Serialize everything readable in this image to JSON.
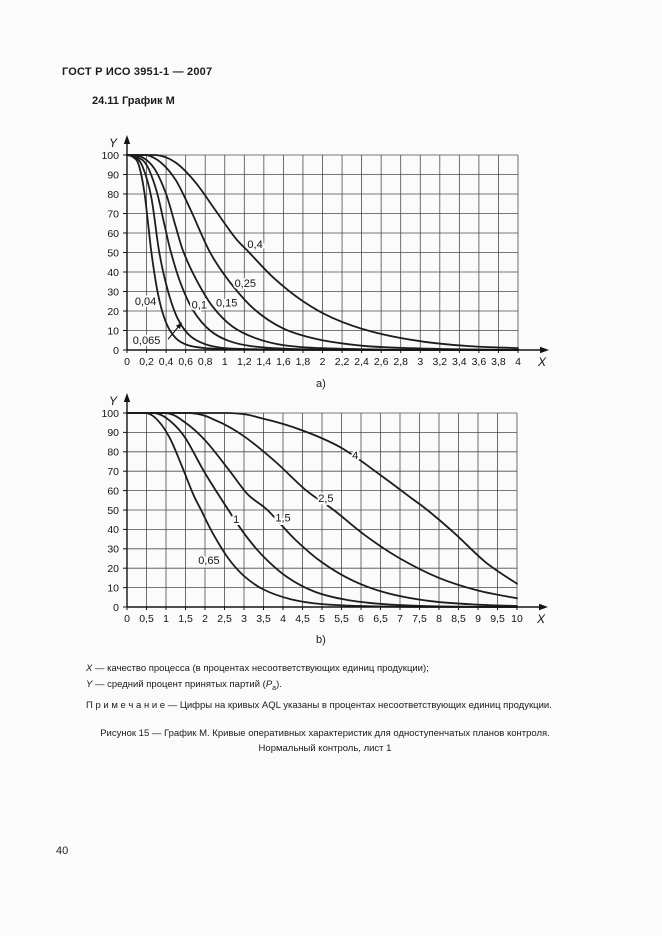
{
  "page": {
    "header": "ГОСТ Р ИСО 3951-1 — 2007",
    "section_title": "24.11 График М",
    "page_number": "40"
  },
  "legend": {
    "x_sym": "X",
    "x_rest": " — качество процесса (в процентах несоответствующих единиц продукции);",
    "y_sym": "Y",
    "y_rest": " — средний процент принятых партий (",
    "p_sym": "P",
    "p_sub": "a",
    "y_suffix": ").",
    "note": "П р и м е ч а н и е — Цифры на кривых AQL указаны в процентах  несоответствующих единиц продукции.",
    "caption_line1": "Рисунок 15 — График М. Кривые оперативных характеристик для одноступенчатых планов контроля.",
    "caption_line2": "Нормальный контроль, лист 1"
  },
  "chart_data": [
    {
      "id": "a",
      "type": "line",
      "sublabel": "a)",
      "xlabel": "X",
      "ylabel": "Y",
      "x_range": [
        0,
        4
      ],
      "x_grid_step": 0.2,
      "y_range": [
        0,
        100
      ],
      "y_grid_step": 10,
      "grid": true,
      "x_tick_labels": [
        "0",
        "0,2",
        "0,4",
        "0,6",
        "0,8",
        "1",
        "1,2",
        "1,4",
        "1,6",
        "1,8",
        "2",
        "2,2",
        "2,4",
        "2,6",
        "2,8",
        "3",
        "3,2",
        "3,4",
        "3,6",
        "3,8",
        "4"
      ],
      "y_tick_labels": [
        "0",
        "10",
        "20",
        "30",
        "40",
        "50",
        "60",
        "70",
        "80",
        "90",
        "100"
      ],
      "series": [
        {
          "name": "0,04",
          "label_pos": [
            0.19,
            25
          ],
          "points": [
            [
              0,
              100
            ],
            [
              0.06,
              99
            ],
            [
              0.12,
              95
            ],
            [
              0.18,
              80
            ],
            [
              0.25,
              50
            ],
            [
              0.32,
              28
            ],
            [
              0.4,
              14
            ],
            [
              0.5,
              6
            ],
            [
              0.62,
              2.5
            ],
            [
              0.8,
              1
            ],
            [
              1.1,
              0.3
            ],
            [
              1.7,
              0.1
            ],
            [
              4,
              0
            ]
          ]
        },
        {
          "name": "0,065",
          "label_pos": [
            0.2,
            5
          ],
          "points": [
            [
              0,
              100
            ],
            [
              0.08,
              99
            ],
            [
              0.16,
              94
            ],
            [
              0.25,
              78
            ],
            [
              0.33,
              50
            ],
            [
              0.42,
              30
            ],
            [
              0.52,
              16
            ],
            [
              0.64,
              7.5
            ],
            [
              0.8,
              3
            ],
            [
              1.0,
              1
            ],
            [
              1.4,
              0.3
            ],
            [
              2.0,
              0.1
            ],
            [
              4,
              0
            ]
          ]
        },
        {
          "name": "0,1",
          "label_pos": [
            0.74,
            23
          ],
          "points": [
            [
              0,
              100
            ],
            [
              0.1,
              99
            ],
            [
              0.2,
              95
            ],
            [
              0.3,
              82
            ],
            [
              0.38,
              65
            ],
            [
              0.45,
              50
            ],
            [
              0.55,
              34
            ],
            [
              0.68,
              20
            ],
            [
              0.85,
              10
            ],
            [
              1.05,
              4.5
            ],
            [
              1.3,
              1.8
            ],
            [
              1.7,
              0.5
            ],
            [
              2.3,
              0.1
            ],
            [
              4,
              0
            ]
          ]
        },
        {
          "name": "0,15",
          "label_pos": [
            1.02,
            24
          ],
          "points": [
            [
              0,
              100
            ],
            [
              0.15,
              99
            ],
            [
              0.28,
              93
            ],
            [
              0.4,
              80
            ],
            [
              0.5,
              63
            ],
            [
              0.58,
              50
            ],
            [
              0.72,
              35
            ],
            [
              0.88,
              22
            ],
            [
              1.08,
              12
            ],
            [
              1.32,
              6
            ],
            [
              1.6,
              2.5
            ],
            [
              2.0,
              0.9
            ],
            [
              2.7,
              0.2
            ],
            [
              4,
              0
            ]
          ]
        },
        {
          "name": "0,25",
          "label_pos": [
            1.21,
            34
          ],
          "points": [
            [
              0,
              100
            ],
            [
              0.2,
              100
            ],
            [
              0.35,
              96
            ],
            [
              0.5,
              87
            ],
            [
              0.65,
              72
            ],
            [
              0.85,
              50
            ],
            [
              1.05,
              35
            ],
            [
              1.3,
              21
            ],
            [
              1.6,
              11
            ],
            [
              1.95,
              5.5
            ],
            [
              2.4,
              2.2
            ],
            [
              2.9,
              0.9
            ],
            [
              3.5,
              0.3
            ],
            [
              4,
              0.1
            ]
          ]
        },
        {
          "name": "0,4",
          "label_pos": [
            1.31,
            54
          ],
          "points": [
            [
              0,
              100
            ],
            [
              0.3,
              100
            ],
            [
              0.5,
              96
            ],
            [
              0.7,
              86
            ],
            [
              0.9,
              72
            ],
            [
              1.1,
              58
            ],
            [
              1.25,
              50
            ],
            [
              1.5,
              37
            ],
            [
              1.8,
              25
            ],
            [
              2.1,
              16.5
            ],
            [
              2.5,
              9.5
            ],
            [
              3.0,
              4.5
            ],
            [
              3.5,
              2
            ],
            [
              4,
              1
            ]
          ]
        }
      ],
      "annotation_arrow": {
        "from": [
          0.42,
          5.5
        ],
        "to": [
          0.56,
          14
        ]
      }
    },
    {
      "id": "b",
      "type": "line",
      "sublabel": "b)",
      "xlabel": "X",
      "ylabel": "Y",
      "x_range": [
        0,
        10
      ],
      "x_grid_step": 0.5,
      "y_range": [
        0,
        100
      ],
      "y_grid_step": 10,
      "grid": true,
      "x_tick_labels": [
        "0",
        "0,5",
        "1",
        "1,5",
        "2",
        "2,5",
        "3",
        "3,5",
        "4",
        "4,5",
        "5",
        "5,5",
        "6",
        "6,5",
        "7",
        "7,5",
        "8",
        "8,5",
        "9",
        "9,5",
        "10"
      ],
      "y_tick_labels": [
        "0",
        "10",
        "20",
        "30",
        "40",
        "50",
        "60",
        "70",
        "80",
        "90",
        "100"
      ],
      "series": [
        {
          "name": "0,65",
          "label_pos": [
            2.1,
            24
          ],
          "points": [
            [
              0,
              100
            ],
            [
              0.5,
              100
            ],
            [
              0.8,
              96
            ],
            [
              1.1,
              87
            ],
            [
              1.4,
              73
            ],
            [
              1.7,
              58
            ],
            [
              1.9,
              50
            ],
            [
              2.2,
              38
            ],
            [
              2.6,
              25
            ],
            [
              3.0,
              16
            ],
            [
              3.5,
              9
            ],
            [
              4.2,
              4
            ],
            [
              5.0,
              1.5
            ],
            [
              6.0,
              0.5
            ],
            [
              7.2,
              0.1
            ],
            [
              10,
              0
            ]
          ]
        },
        {
          "name": "1",
          "label_pos": [
            2.8,
            45
          ],
          "points": [
            [
              0,
              100
            ],
            [
              0.7,
              100
            ],
            [
              1.1,
              96
            ],
            [
              1.5,
              87
            ],
            [
              2.0,
              69
            ],
            [
              2.6,
              50
            ],
            [
              3.0,
              38
            ],
            [
              3.5,
              26
            ],
            [
              4.1,
              15.5
            ],
            [
              4.8,
              8
            ],
            [
              5.6,
              3.8
            ],
            [
              6.5,
              1.6
            ],
            [
              7.6,
              0.5
            ],
            [
              9.0,
              0.1
            ],
            [
              10,
              0
            ]
          ]
        },
        {
          "name": "1,5",
          "label_pos": [
            4.0,
            46
          ],
          "points": [
            [
              0,
              100
            ],
            [
              1.0,
              100
            ],
            [
              1.5,
              95
            ],
            [
              2.0,
              86
            ],
            [
              2.6,
              71
            ],
            [
              3.1,
              58
            ],
            [
              3.6,
              50
            ],
            [
              4.3,
              35
            ],
            [
              5.0,
              23
            ],
            [
              5.8,
              13.5
            ],
            [
              6.7,
              7
            ],
            [
              7.8,
              3
            ],
            [
              9.0,
              1.2
            ],
            [
              10,
              0.5
            ]
          ]
        },
        {
          "name": "2,5",
          "label_pos": [
            5.1,
            56
          ],
          "points": [
            [
              0,
              100
            ],
            [
              1.6,
              100
            ],
            [
              2.3,
              96
            ],
            [
              3.0,
              88
            ],
            [
              3.8,
              75
            ],
            [
              4.6,
              60
            ],
            [
              5.3,
              50
            ],
            [
              6.1,
              37
            ],
            [
              7.0,
              25
            ],
            [
              8.0,
              15
            ],
            [
              9.0,
              8.5
            ],
            [
              10,
              4.5
            ]
          ]
        },
        {
          "name": "4",
          "label_pos": [
            5.85,
            78
          ],
          "points": [
            [
              0,
              100
            ],
            [
              2.6,
              100
            ],
            [
              3.5,
              97
            ],
            [
              4.5,
              91
            ],
            [
              5.5,
              82
            ],
            [
              6.5,
              68
            ],
            [
              7.3,
              56
            ],
            [
              7.7,
              50
            ],
            [
              8.4,
              38
            ],
            [
              9.2,
              23
            ],
            [
              10,
              12
            ]
          ]
        }
      ]
    }
  ]
}
